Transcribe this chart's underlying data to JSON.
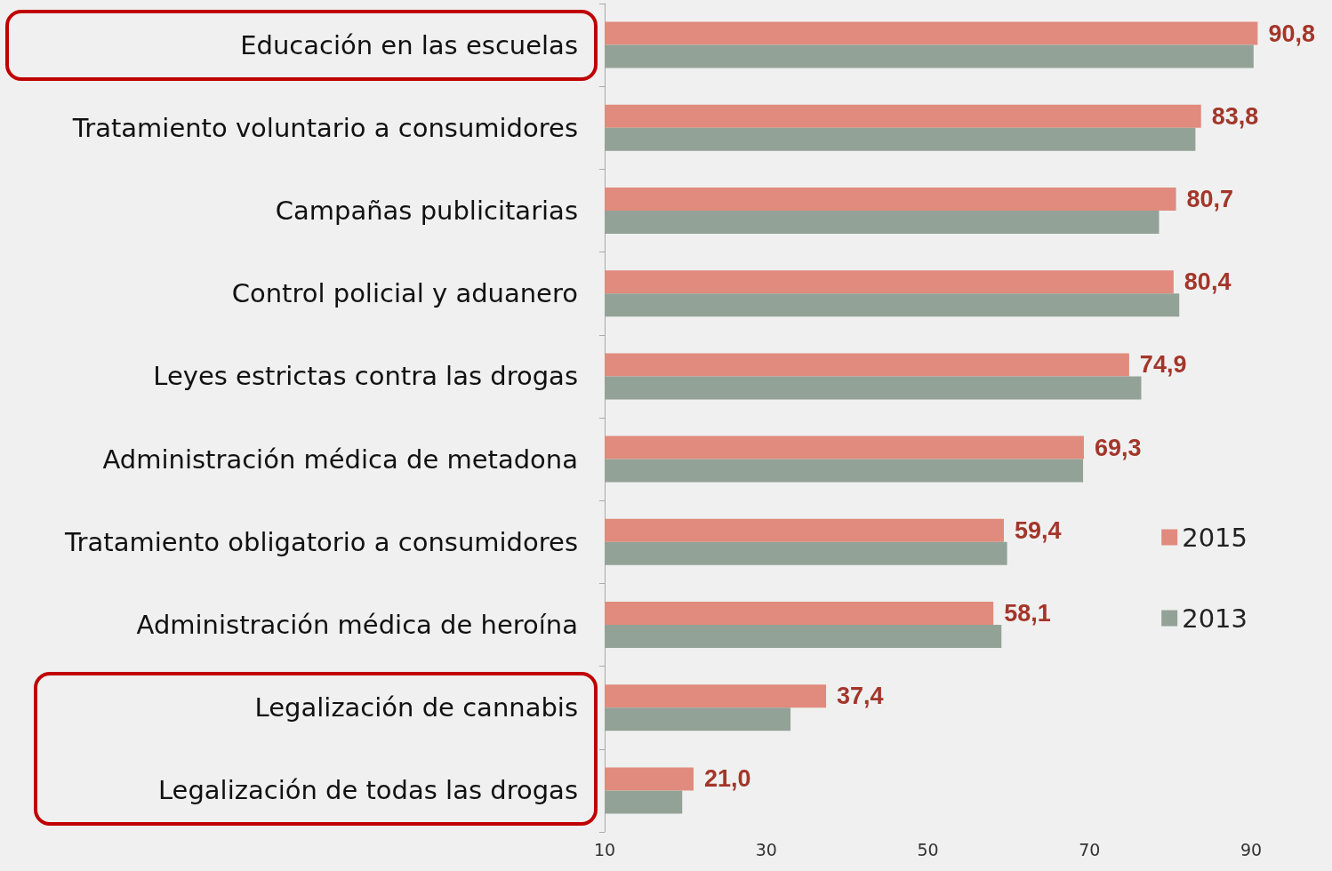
{
  "chart_data": {
    "type": "bar",
    "orientation": "horizontal",
    "categories": [
      "Educación en las escuelas",
      "Tratamiento voluntario a consumidores",
      "Campañas publicitarias",
      "Control policial y aduanero",
      "Leyes estrictas contra las drogas",
      "Administración médica de metadona",
      "Tratamiento obligatorio a consumidores",
      "Administración médica de heroína",
      "Legalización de cannabis",
      "Legalización de todas las drogas"
    ],
    "series": [
      {
        "name": "2015",
        "color": "#e08b7d",
        "values": [
          90.8,
          83.8,
          80.7,
          80.4,
          74.9,
          69.3,
          59.4,
          58.1,
          37.4,
          21.0
        ],
        "value_labels": [
          "90,8",
          "83,8",
          "80,7",
          "80,4",
          "74,9",
          "69,3",
          "59,4",
          "58,1",
          "37,4",
          "21,0"
        ]
      },
      {
        "name": "2013",
        "color": "#93a297",
        "values": [
          90.3,
          83.1,
          78.6,
          81.1,
          76.4,
          69.2,
          59.8,
          59.1,
          33.0,
          19.6
        ]
      }
    ],
    "xlim": [
      10,
      100
    ],
    "xticks": [
      10,
      30,
      50,
      70,
      90
    ],
    "grid": false,
    "legend": "right"
  }
}
